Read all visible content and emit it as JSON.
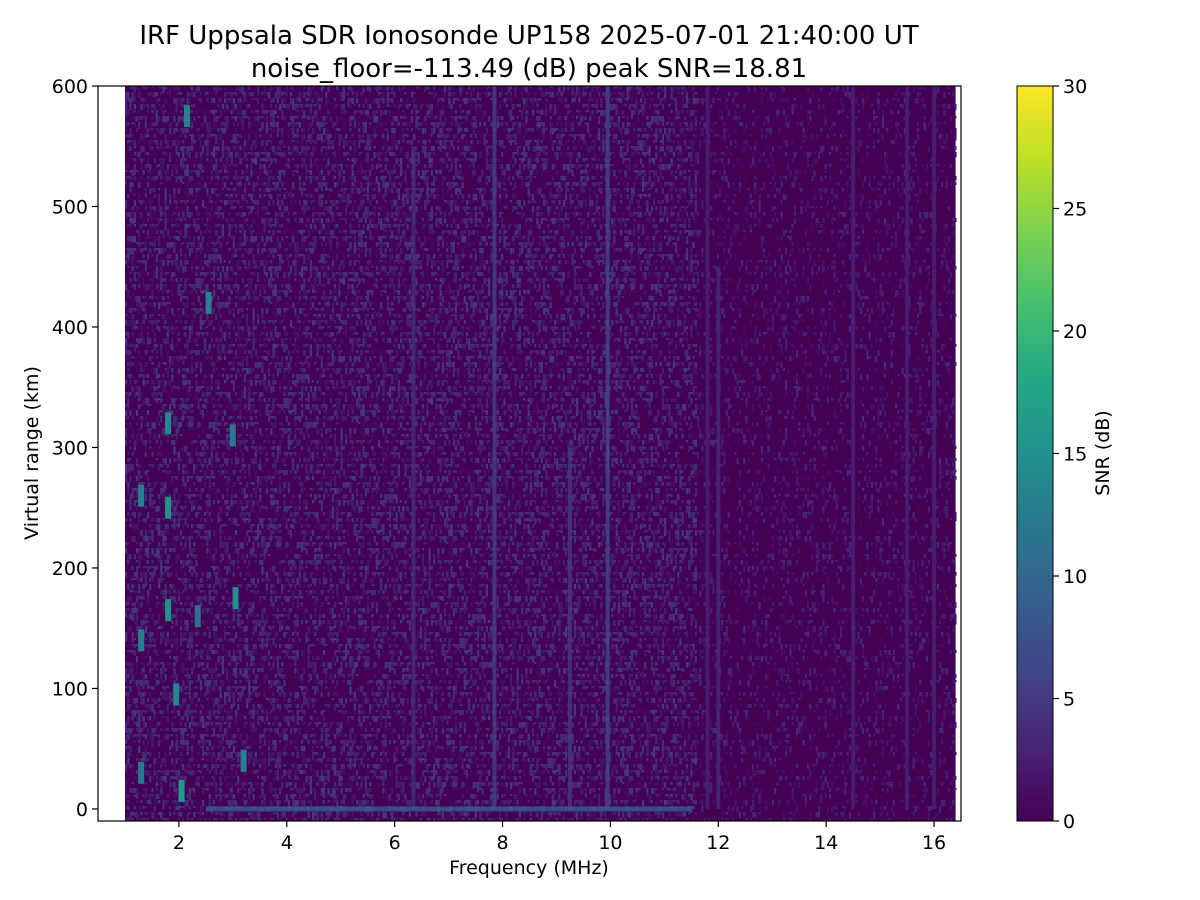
{
  "chart_data": {
    "type": "heatmap",
    "title": "IRF Uppsala SDR Ionosonde UP158 2025-07-01 21:40:00  UT",
    "subtitle": "noise_floor=-113.49 (dB) peak SNR=18.81",
    "xlabel": "Frequency (MHz)",
    "ylabel": "Virtual range (km)",
    "colorbar_label": "SNR (dB)",
    "colormap": "viridis",
    "xlim": [
      0.5,
      16.5
    ],
    "ylim": [
      -10,
      600
    ],
    "clim": [
      0,
      30
    ],
    "x_ticks": [
      2,
      4,
      6,
      8,
      10,
      12,
      14,
      16
    ],
    "y_ticks": [
      0,
      100,
      200,
      300,
      400,
      500,
      600
    ],
    "colorbar_ticks": [
      0,
      5,
      10,
      15,
      20,
      25,
      30
    ],
    "data_extent": {
      "freq_min_mhz": 1.0,
      "freq_max_mhz": 16.4,
      "range_min_km": -10,
      "range_max_km": 600
    },
    "features": [
      {
        "kind": "vertical-streak",
        "freq": 7.85,
        "range": [
          0,
          600
        ],
        "snr": 6
      },
      {
        "kind": "vertical-streak",
        "freq": 9.95,
        "range": [
          0,
          600
        ],
        "snr": 7
      },
      {
        "kind": "vertical-streak",
        "freq": 6.35,
        "range": [
          0,
          550
        ],
        "snr": 4
      },
      {
        "kind": "vertical-streak",
        "freq": 9.25,
        "range": [
          0,
          300
        ],
        "snr": 5
      },
      {
        "kind": "vertical-streak",
        "freq": 12.0,
        "range": [
          0,
          450
        ],
        "snr": 4
      },
      {
        "kind": "vertical-streak",
        "freq": 11.8,
        "range": [
          0,
          600
        ],
        "snr": 3
      },
      {
        "kind": "vertical-streak",
        "freq": 14.5,
        "range": [
          0,
          600
        ],
        "snr": 3
      },
      {
        "kind": "vertical-streak",
        "freq": 15.5,
        "range": [
          0,
          600
        ],
        "snr": 3
      },
      {
        "kind": "vertical-streak",
        "freq": 16.0,
        "range": [
          0,
          600
        ],
        "snr": 3
      },
      {
        "kind": "ground-echo",
        "freq_range": [
          2.5,
          11.5
        ],
        "range": 0,
        "snr": 9
      },
      {
        "kind": "patch",
        "freq": 1.3,
        "range": 260,
        "snr": 13
      },
      {
        "kind": "patch",
        "freq": 1.3,
        "range": 140,
        "snr": 13
      },
      {
        "kind": "patch",
        "freq": 1.8,
        "range": 320,
        "snr": 14
      },
      {
        "kind": "patch",
        "freq": 1.8,
        "range": 250,
        "snr": 15
      },
      {
        "kind": "patch",
        "freq": 1.8,
        "range": 165,
        "snr": 15
      },
      {
        "kind": "patch",
        "freq": 1.95,
        "range": 95,
        "snr": 14
      },
      {
        "kind": "patch",
        "freq": 2.05,
        "range": 15,
        "snr": 16
      },
      {
        "kind": "patch",
        "freq": 2.15,
        "range": 575,
        "snr": 13
      },
      {
        "kind": "patch",
        "freq": 2.55,
        "range": 420,
        "snr": 13
      },
      {
        "kind": "patch",
        "freq": 3.05,
        "range": 175,
        "snr": 15
      },
      {
        "kind": "patch",
        "freq": 3.2,
        "range": 40,
        "snr": 13
      },
      {
        "kind": "patch",
        "freq": 3.0,
        "range": 310,
        "snr": 12
      },
      {
        "kind": "patch",
        "freq": 1.3,
        "range": 30,
        "snr": 12
      },
      {
        "kind": "patch",
        "freq": 2.35,
        "range": 160,
        "snr": 11
      }
    ]
  }
}
